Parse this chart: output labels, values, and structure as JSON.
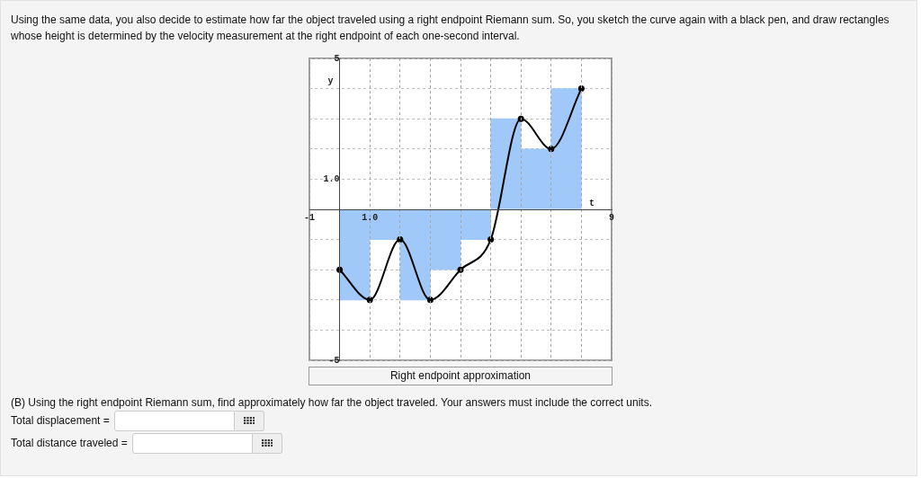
{
  "chart_data": {
    "type": "line",
    "title": "Right endpoint approximation",
    "xlabel": "t",
    "ylabel": "y",
    "annotations": [
      "Using the same data, you also decide to estimate how far the object traveled using a right endpoint Riemann sum. So, you sketch the curve again with a black pen, and draw rectangles whose height is determined by the velocity measurement at the right endpoint of each one-second interval.",
      "(B) Using the right endpoint Riemann sum, find approximately how far the object traveled. Your answers must include the correct units.",
      "Total displacement =",
      "Total distance traveled ="
    ],
    "series": [
      {
        "type": "histogram",
        "color": "#a0c8f8",
        "bins": [
          0,
          1,
          2,
          3,
          4,
          5,
          6,
          7,
          8
        ],
        "values": [
          -3,
          -1,
          -3,
          -2,
          -1,
          3,
          2,
          4
        ]
      },
      {
        "color": "#000000",
        "x": [
          0,
          1,
          2,
          3,
          4,
          5,
          6,
          7,
          8
        ],
        "values": [
          -2,
          -3,
          -1,
          -3,
          -2,
          -1,
          3,
          2,
          4
        ],
        "marker": "circle"
      }
    ],
    "xlim": [
      -1,
      9
    ],
    "ylim": [
      -5,
      5
    ],
    "xticks": [
      -1,
      {
        "value": 0,
        "label": null
      },
      {
        "value": 1,
        "label": "1.0"
      },
      {
        "value": 2,
        "label": null
      },
      {
        "value": 3,
        "label": null
      },
      {
        "value": 4,
        "label": null
      },
      {
        "value": 5,
        "label": null
      },
      {
        "value": 6,
        "label": null
      },
      {
        "value": 7,
        "label": null
      },
      {
        "value": 8,
        "label": null
      },
      9
    ],
    "yticks": [
      -5,
      {
        "value": -4,
        "label": null
      },
      {
        "value": -3,
        "label": null
      },
      {
        "value": -2,
        "label": null
      },
      {
        "value": -1,
        "label": null
      },
      {
        "value": 0,
        "label": null
      },
      {
        "value": 1,
        "label": "1.0"
      },
      {
        "value": 2,
        "label": null
      },
      {
        "value": 3,
        "label": null
      },
      {
        "value": 4,
        "label": null
      },
      5
    ],
    "grid": true
  }
}
